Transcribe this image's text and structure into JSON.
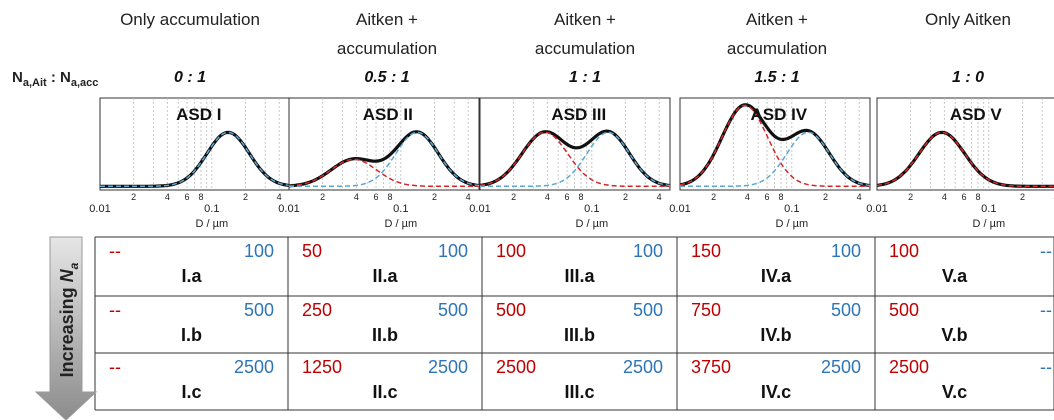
{
  "legend": {
    "ratio_label_main": "N",
    "ait_sub": "a,Ait",
    "colon": " : N",
    "acc_sub": "a,acc"
  },
  "arrow": {
    "label_main": "Increasing ",
    "label_var": "N",
    "label_sub": "a"
  },
  "chart_data": {
    "type": "line",
    "xlabel": "D  / µm",
    "x_scale": "log",
    "xlim": [
      0.01,
      0.5
    ],
    "x_tick_labels": [
      "0.01",
      "2",
      "4",
      "6",
      "8",
      "0.1",
      "2",
      "4"
    ],
    "modes": {
      "aitken": {
        "geo_mean_um": 0.038,
        "sigma_g": 1.6,
        "color": "#d62728"
      },
      "accumulation": {
        "geo_mean_um": 0.14,
        "sigma_g": 1.55,
        "color": "#5aa7d6"
      }
    },
    "total_color": "#111111",
    "panels": [
      {
        "label": "ASD I",
        "header": [
          "Only accumulation",
          ""
        ],
        "ratio": "0 : 1",
        "aitken": 0,
        "accumulation": 1,
        "show_aitken": false,
        "show_acc": true
      },
      {
        "label": "ASD II",
        "header": [
          "Aitken +",
          "accumulation"
        ],
        "ratio": "0.5 : 1",
        "aitken": 0.5,
        "accumulation": 1,
        "show_aitken": true,
        "show_acc": true
      },
      {
        "label": "ASD III",
        "header": [
          "Aitken +",
          "accumulation"
        ],
        "ratio": "1 : 1",
        "aitken": 1,
        "accumulation": 1,
        "show_aitken": true,
        "show_acc": true
      },
      {
        "label": "ASD IV",
        "header": [
          "Aitken +",
          "accumulation"
        ],
        "ratio": "1.5 : 1",
        "aitken": 1.5,
        "accumulation": 1,
        "show_aitken": true,
        "show_acc": true
      },
      {
        "label": "ASD V",
        "header": [
          "Only Aitken",
          ""
        ],
        "ratio": "1 : 0",
        "aitken": 1,
        "accumulation": 0,
        "show_aitken": true,
        "show_acc": false
      }
    ]
  },
  "table": {
    "colors": {
      "aitken": "#c00000",
      "accumulation": "#2e75b6"
    },
    "columns": [
      {
        "rows": [
          {
            "ait": "--",
            "acc": "100",
            "id": "I.a"
          },
          {
            "ait": "--",
            "acc": "500",
            "id": "I.b"
          },
          {
            "ait": "--",
            "acc": "2500",
            "id": "I.c"
          }
        ]
      },
      {
        "rows": [
          {
            "ait": "50",
            "acc": "100",
            "id": "II.a"
          },
          {
            "ait": "250",
            "acc": "500",
            "id": "II.b"
          },
          {
            "ait": "1250",
            "acc": "2500",
            "id": "II.c"
          }
        ]
      },
      {
        "rows": [
          {
            "ait": "100",
            "acc": "100",
            "id": "III.a"
          },
          {
            "ait": "500",
            "acc": "500",
            "id": "III.b"
          },
          {
            "ait": "2500",
            "acc": "2500",
            "id": "III.c"
          }
        ]
      },
      {
        "rows": [
          {
            "ait": "150",
            "acc": "100",
            "id": "IV.a"
          },
          {
            "ait": "750",
            "acc": "500",
            "id": "IV.b"
          },
          {
            "ait": "3750",
            "acc": "2500",
            "id": "IV.c"
          }
        ]
      },
      {
        "rows": [
          {
            "ait": "100",
            "acc": "--",
            "id": "V.a"
          },
          {
            "ait": "500",
            "acc": "--",
            "id": "V.b"
          },
          {
            "ait": "2500",
            "acc": "--",
            "id": "V.c"
          }
        ]
      }
    ]
  }
}
